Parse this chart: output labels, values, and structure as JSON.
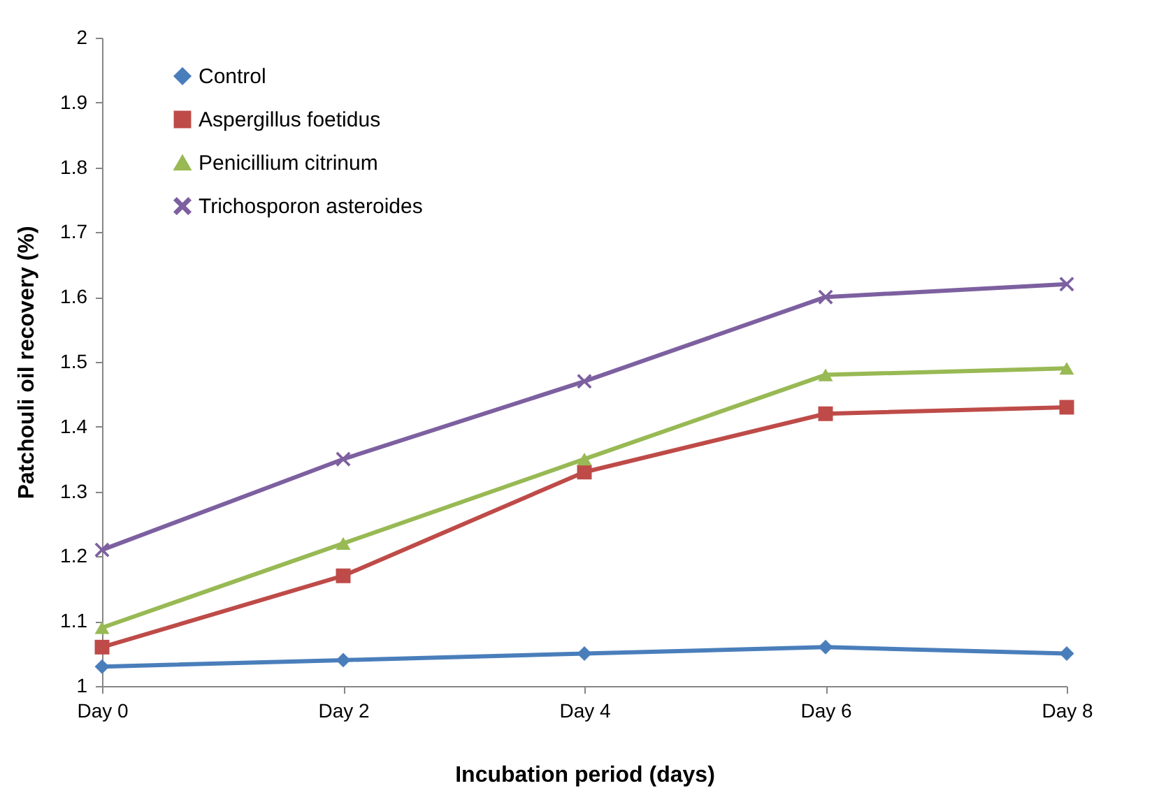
{
  "chart_data": {
    "type": "line",
    "xlabel": "Incubation period (days)",
    "ylabel": "Patchouli oil recovery (%)",
    "categories": [
      "Day 0",
      "Day 2",
      "Day 4",
      "Day 6",
      "Day 8"
    ],
    "ylim": [
      1,
      2
    ],
    "yticks": [
      1,
      1.1,
      1.2,
      1.3,
      1.4,
      1.5,
      1.6,
      1.7,
      1.8,
      1.9,
      2
    ],
    "grid": false,
    "legend": "top left",
    "line_style": "solid",
    "series": [
      {
        "name": "Control",
        "color": "#4a7ebb",
        "marker": "diamond",
        "values": [
          1.03,
          1.04,
          1.05,
          1.06,
          1.05
        ]
      },
      {
        "name": "Aspergillus foetidus",
        "color": "#be4b48",
        "marker": "square",
        "values": [
          1.06,
          1.17,
          1.33,
          1.42,
          1.43
        ]
      },
      {
        "name": "Penicillium citrinum",
        "color": "#98b954",
        "marker": "triangle",
        "values": [
          1.09,
          1.22,
          1.35,
          1.48,
          1.49
        ]
      },
      {
        "name": "Trichosporon asteroides",
        "color": "#7d60a0",
        "marker": "cross",
        "values": [
          1.21,
          1.35,
          1.47,
          1.6,
          1.62
        ]
      }
    ]
  }
}
